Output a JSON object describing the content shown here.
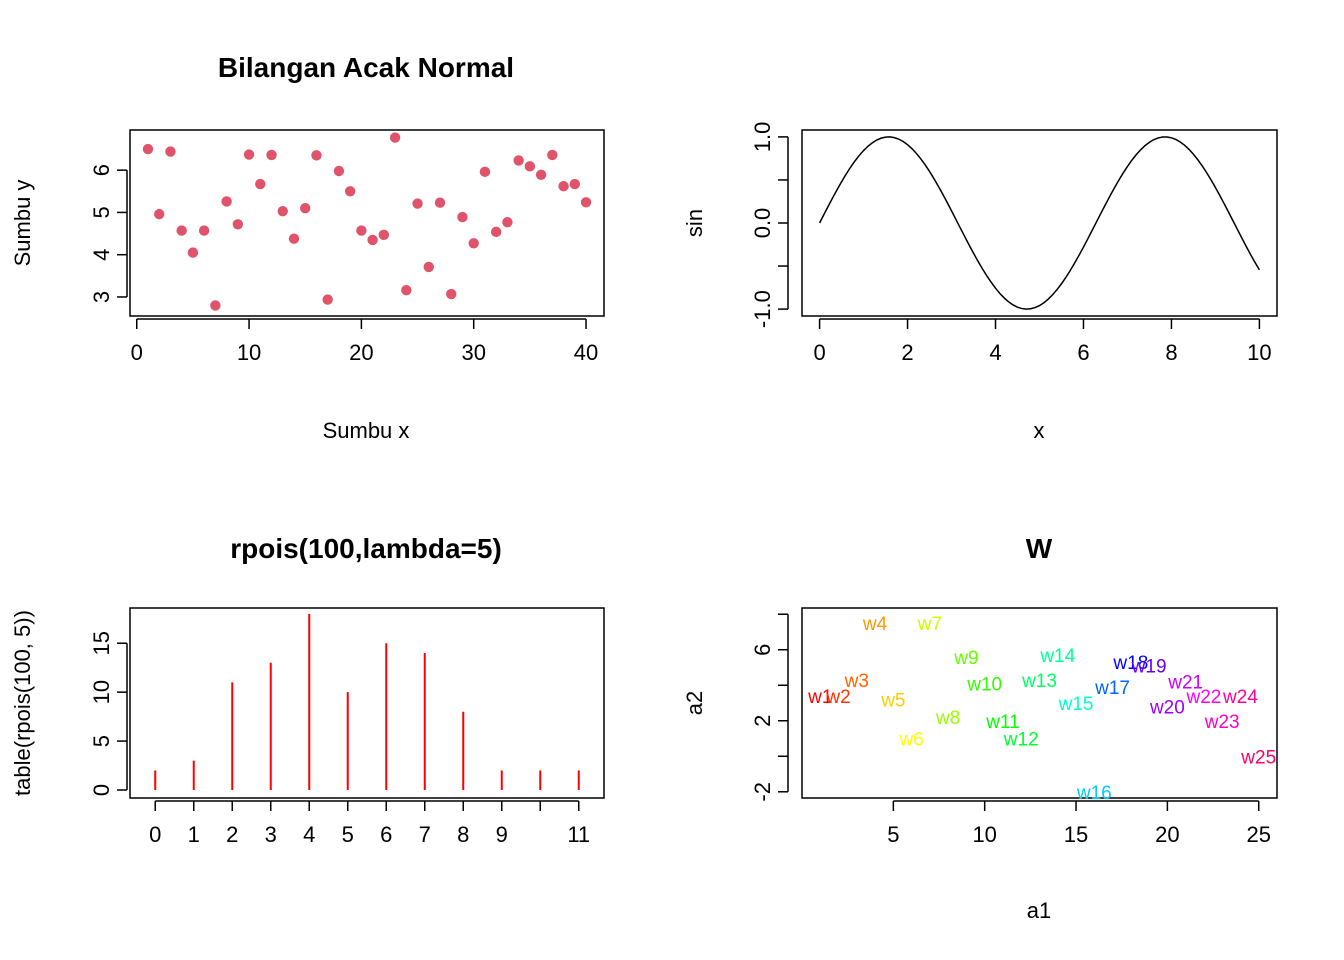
{
  "chart_data": [
    {
      "type": "scatter",
      "title": "Bilangan Acak Normal",
      "xlabel": "Sumbu x",
      "ylabel": "Sumbu y",
      "xlim": [
        -0.6,
        41.6
      ],
      "ylim": [
        2.55,
        6.95
      ],
      "xticks": [
        0,
        10,
        20,
        30,
        40
      ],
      "yticks": [
        3,
        4,
        5,
        6
      ],
      "color": "#df536b",
      "x": [
        1,
        2,
        3,
        4,
        5,
        6,
        7,
        8,
        9,
        10,
        11,
        12,
        13,
        14,
        15,
        16,
        17,
        18,
        19,
        20,
        21,
        22,
        23,
        24,
        25,
        26,
        27,
        28,
        29,
        30,
        31,
        32,
        33,
        34,
        35,
        36,
        37,
        38,
        39,
        40
      ],
      "y": [
        6.5,
        4.96,
        6.44,
        4.57,
        4.05,
        4.57,
        2.8,
        5.26,
        4.72,
        6.37,
        5.67,
        6.36,
        5.03,
        4.38,
        5.1,
        6.35,
        2.94,
        5.98,
        5.5,
        4.57,
        4.35,
        4.47,
        6.77,
        3.16,
        5.21,
        3.71,
        5.23,
        3.07,
        4.89,
        4.27,
        5.96,
        4.54,
        4.77,
        6.23,
        6.09,
        5.89,
        6.36,
        5.62,
        5.67,
        5.24
      ]
    },
    {
      "type": "line",
      "title": "",
      "xlabel": "x",
      "ylabel": "sin",
      "xlim": [
        -0.4,
        10.4
      ],
      "ylim": [
        -1.08,
        1.08
      ],
      "xticks": [
        0,
        2,
        4,
        6,
        8,
        10
      ],
      "yticks": [
        -1.0,
        -0.5,
        0.0,
        0.5,
        1.0
      ],
      "ytick_labels": [
        "-1.0",
        "",
        "0.0",
        "",
        "1.0"
      ],
      "color": "#000000",
      "function": "sin(x)",
      "x_from": 0,
      "x_to": 10,
      "samples": 101
    },
    {
      "type": "bar",
      "style": "histogram-lines",
      "title": "rpois(100,lambda=5)",
      "xlabel": "",
      "ylabel": "table(rpois(100, 5))",
      "categories": [
        "0",
        "1",
        "2",
        "3",
        "4",
        "5",
        "6",
        "7",
        "8",
        "9",
        "10",
        "11"
      ],
      "xtick_labels": [
        "0",
        "1",
        "2",
        "3",
        "4",
        "5",
        "6",
        "7",
        "8",
        "9",
        "",
        "11"
      ],
      "values": [
        2,
        3,
        11,
        13,
        18,
        10,
        15,
        14,
        8,
        2,
        2,
        2
      ],
      "ylim": [
        0,
        18.6
      ],
      "yticks": [
        0,
        5,
        10,
        15
      ],
      "color": "#ff0000"
    },
    {
      "type": "scatter",
      "style": "text-labels",
      "title": "W",
      "xlabel": "a1",
      "ylabel": "a2",
      "xlim": [
        0,
        26
      ],
      "ylim": [
        -2.35,
        8.35
      ],
      "xticks": [
        5,
        10,
        15,
        20,
        25
      ],
      "yticks": [
        -2,
        0,
        2,
        4,
        6,
        8
      ],
      "ytick_labels": [
        "-2",
        "",
        "2",
        "",
        "6",
        ""
      ],
      "points": [
        {
          "label": "w1",
          "x": 1,
          "y": 3.4,
          "color": "#ff0000"
        },
        {
          "label": "w2",
          "x": 2,
          "y": 3.4,
          "color": "#ff3300"
        },
        {
          "label": "w3",
          "x": 3,
          "y": 4.3,
          "color": "#ff6600"
        },
        {
          "label": "w4",
          "x": 4,
          "y": 7.5,
          "color": "#ff9900"
        },
        {
          "label": "w5",
          "x": 5,
          "y": 3.2,
          "color": "#ffcc00"
        },
        {
          "label": "w6",
          "x": 6,
          "y": 1.0,
          "color": "#ffff00"
        },
        {
          "label": "w7",
          "x": 7,
          "y": 7.5,
          "color": "#ccff00"
        },
        {
          "label": "w8",
          "x": 8,
          "y": 2.2,
          "color": "#99ff00"
        },
        {
          "label": "w9",
          "x": 9,
          "y": 5.6,
          "color": "#66ff00"
        },
        {
          "label": "w10",
          "x": 10,
          "y": 4.1,
          "color": "#33ff00"
        },
        {
          "label": "w11",
          "x": 11,
          "y": 2.0,
          "color": "#00ff00"
        },
        {
          "label": "w12",
          "x": 12,
          "y": 1.0,
          "color": "#00ff33"
        },
        {
          "label": "w13",
          "x": 13,
          "y": 4.3,
          "color": "#00ff66"
        },
        {
          "label": "w14",
          "x": 14,
          "y": 5.7,
          "color": "#00ff99"
        },
        {
          "label": "w15",
          "x": 15,
          "y": 3.0,
          "color": "#00ffcc"
        },
        {
          "label": "w16",
          "x": 16,
          "y": -2.0,
          "color": "#00ccff"
        },
        {
          "label": "w17",
          "x": 17,
          "y": 3.9,
          "color": "#0066ff"
        },
        {
          "label": "w18",
          "x": 18,
          "y": 5.3,
          "color": "#0000ff"
        },
        {
          "label": "w19",
          "x": 19,
          "y": 5.1,
          "color": "#6600ff"
        },
        {
          "label": "w20",
          "x": 20,
          "y": 2.8,
          "color": "#9900ff"
        },
        {
          "label": "w21",
          "x": 21,
          "y": 4.2,
          "color": "#cc00ff"
        },
        {
          "label": "w22",
          "x": 22,
          "y": 3.4,
          "color": "#ff00ff"
        },
        {
          "label": "w23",
          "x": 23,
          "y": 2.0,
          "color": "#ff00cc"
        },
        {
          "label": "w24",
          "x": 24,
          "y": 3.4,
          "color": "#ff0099"
        },
        {
          "label": "w25",
          "x": 25,
          "y": 0.0,
          "color": "#ff0066"
        }
      ]
    }
  ]
}
